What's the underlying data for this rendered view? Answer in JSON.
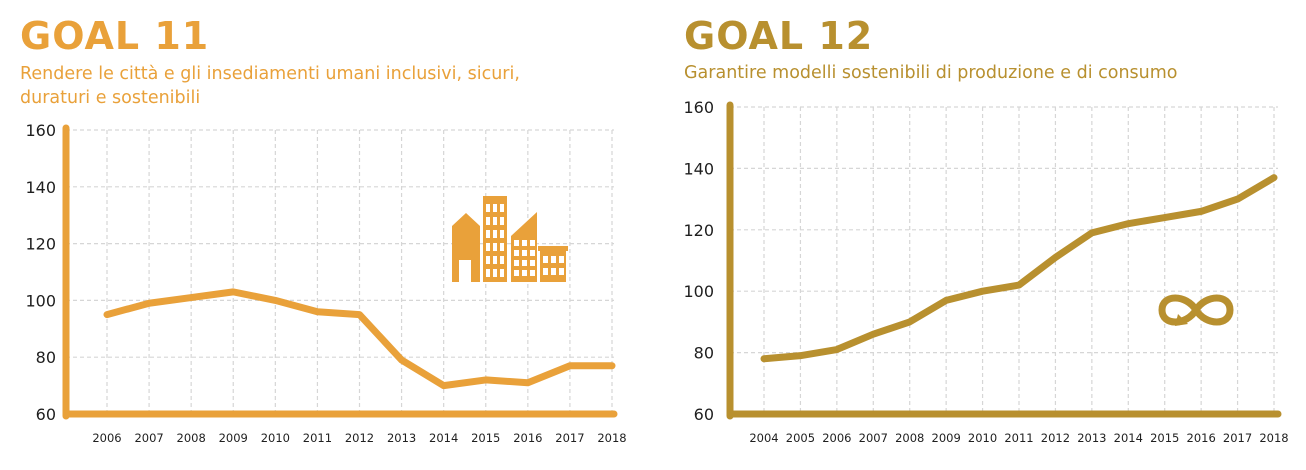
{
  "chart_data": [
    {
      "type": "line",
      "title": "GOAL 11",
      "subtitle_lines": [
        "Rendere le città e gli insediamenti umani inclusivi, sicuri,",
        "duraturi e sostenibili"
      ],
      "icon": "city-buildings-icon",
      "x": [
        "2006",
        "2007",
        "2008",
        "2009",
        "2010",
        "2011",
        "2012",
        "2013",
        "2014",
        "2015",
        "2016",
        "2017",
        "2018"
      ],
      "series": [
        {
          "values": [
            95,
            99,
            101,
            103,
            100,
            96,
            95,
            79,
            70,
            72,
            71,
            77,
            77
          ]
        }
      ],
      "ylim": [
        60,
        160
      ],
      "yticks": [
        60,
        80,
        100,
        120,
        140,
        160
      ],
      "xlabel": "",
      "ylabel": "",
      "grid": true,
      "color": "#e9a13a"
    },
    {
      "type": "line",
      "title": "GOAL 12",
      "subtitle_lines": [
        "Garantire modelli sostenibili di produzione e di consumo"
      ],
      "icon": "infinity-loop-icon",
      "x": [
        "2004",
        "2005",
        "2006",
        "2007",
        "2008",
        "2009",
        "2010",
        "2011",
        "2012",
        "2013",
        "2014",
        "2015",
        "2016",
        "2017",
        "2018"
      ],
      "series": [
        {
          "values": [
            78,
            79,
            81,
            86,
            90,
            97,
            100,
            102,
            111,
            119,
            122,
            124,
            126,
            130,
            137
          ]
        }
      ],
      "ylim": [
        60,
        160
      ],
      "yticks": [
        60,
        80,
        100,
        120,
        140,
        160
      ],
      "xlabel": "",
      "ylabel": "",
      "grid": true,
      "color": "#b8902f"
    }
  ]
}
